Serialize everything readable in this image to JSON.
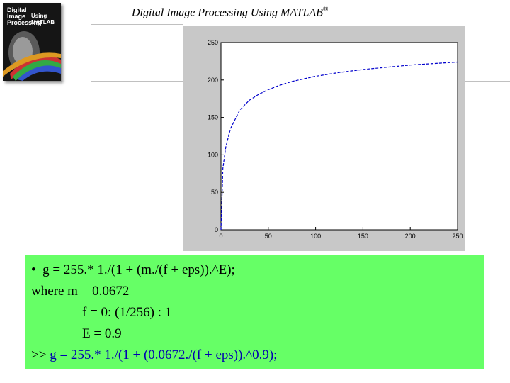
{
  "header": {
    "title": "Digital Image Processing Using MATLAB",
    "trademark": "®"
  },
  "book": {
    "title_line_1": "Digital",
    "title_line_2": "Image",
    "title_line_3": "Processing",
    "title_using": "Using MATLAB"
  },
  "chart_data": {
    "type": "line",
    "x": [
      0,
      2,
      5,
      10,
      20,
      30,
      40,
      50,
      60,
      75,
      100,
      125,
      150,
      175,
      200,
      225,
      250
    ],
    "series": [
      {
        "values": [
          0,
          82,
          110,
          135,
          160,
          173,
          181,
          187,
          192,
          198,
          205,
          210,
          214,
          217,
          220,
          222,
          224
        ]
      }
    ],
    "xlim": [
      0,
      250
    ],
    "ylim": [
      0,
      250
    ],
    "xticks": [
      0,
      50,
      100,
      150,
      200,
      250
    ],
    "yticks": [
      0,
      50,
      100,
      150,
      200,
      250
    ],
    "line_style": "dashed",
    "line_color": "#0000cc",
    "grid": false
  },
  "formula": {
    "bullet": "•",
    "line1": "g = 255.* 1./(1 + (m./(f + eps)).^E);",
    "line2": "where  m = 0.0672",
    "line3": "f = 0: (1/256) : 1",
    "line4": "E = 0.9",
    "prompt": ">>",
    "command": "g = 255.* 1./(1 + (0.0672./(f + eps)).^0.9);"
  }
}
